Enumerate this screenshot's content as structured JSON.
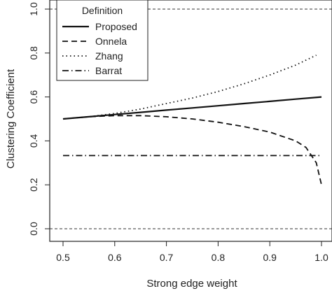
{
  "chart_data": {
    "type": "line",
    "xlabel": "Strong edge weight",
    "ylabel": "Clustering Coefficient",
    "xlim": [
      0.5,
      1.0
    ],
    "ylim": [
      0.0,
      1.0
    ],
    "x_ticks": [
      "0.5",
      "0.6",
      "0.7",
      "0.8",
      "0.9",
      "1.0"
    ],
    "y_ticks": [
      "0.0",
      "0.2",
      "0.4",
      "0.6",
      "0.8",
      "1.0"
    ],
    "legend_title": "Definition",
    "legend_position": "top-left",
    "grid": false,
    "reference_lines": [
      0.0,
      1.0
    ],
    "series": [
      {
        "name": "Proposed",
        "dash": "solid",
        "x": [
          0.5,
          0.55,
          0.6,
          0.65,
          0.7,
          0.75,
          0.8,
          0.85,
          0.9,
          0.95,
          1.0
        ],
        "y": [
          0.5,
          0.51,
          0.52,
          0.53,
          0.54,
          0.55,
          0.56,
          0.57,
          0.58,
          0.59,
          0.6
        ]
      },
      {
        "name": "Onnela",
        "dash": "dashed",
        "x": [
          0.5,
          0.55,
          0.6,
          0.65,
          0.7,
          0.75,
          0.8,
          0.85,
          0.9,
          0.95,
          0.97,
          0.99,
          1.0
        ],
        "y": [
          0.5,
          0.51,
          0.515,
          0.515,
          0.51,
          0.5,
          0.485,
          0.465,
          0.44,
          0.4,
          0.37,
          0.3,
          0.2
        ]
      },
      {
        "name": "Zhang",
        "dash": "dotted",
        "x": [
          0.5,
          0.55,
          0.6,
          0.65,
          0.7,
          0.75,
          0.8,
          0.85,
          0.9,
          0.95,
          0.99
        ],
        "y": [
          0.5,
          0.51,
          0.525,
          0.545,
          0.57,
          0.595,
          0.625,
          0.66,
          0.7,
          0.745,
          0.79
        ]
      },
      {
        "name": "Barrat",
        "dash": "dotdash",
        "x": [
          0.5,
          1.0
        ],
        "y": [
          0.333,
          0.333
        ]
      }
    ]
  }
}
